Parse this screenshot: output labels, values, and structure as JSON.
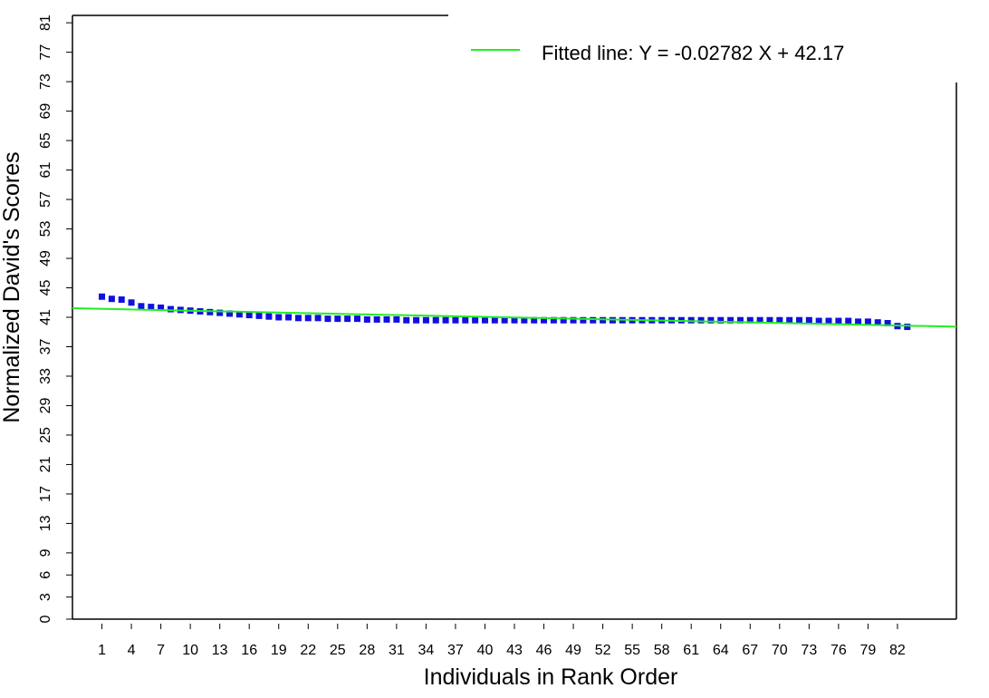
{
  "chart_data": {
    "type": "scatter",
    "xlabel": "Individuals in Rank Order",
    "ylabel": "Normalized David's Scores",
    "xlim": [
      -2,
      88
    ],
    "ylim": [
      0,
      82
    ],
    "x_ticks": [
      1,
      4,
      7,
      10,
      13,
      16,
      19,
      22,
      25,
      28,
      31,
      34,
      37,
      40,
      43,
      46,
      49,
      52,
      55,
      58,
      61,
      64,
      67,
      70,
      73,
      76,
      79,
      82
    ],
    "y_ticks": [
      0,
      3,
      6,
      9,
      13,
      17,
      21,
      25,
      29,
      33,
      37,
      41,
      45,
      49,
      53,
      57,
      61,
      65,
      69,
      73,
      77,
      81
    ],
    "grid": false,
    "legend": {
      "position": "top-right",
      "entries": [
        {
          "label": "Fitted line:  Y =  -0.02782 X + 42.17",
          "color": "#22ee22"
        }
      ]
    },
    "points": {
      "color": "#1010e0",
      "x": [
        1,
        2,
        3,
        4,
        5,
        6,
        7,
        8,
        9,
        10,
        11,
        12,
        13,
        14,
        15,
        16,
        17,
        18,
        19,
        20,
        21,
        22,
        23,
        24,
        25,
        26,
        27,
        28,
        29,
        30,
        31,
        32,
        33,
        34,
        35,
        36,
        37,
        38,
        39,
        40,
        41,
        42,
        43,
        44,
        45,
        46,
        47,
        48,
        49,
        50,
        51,
        52,
        53,
        54,
        55,
        56,
        57,
        58,
        59,
        60,
        61,
        62,
        63,
        64,
        65,
        66,
        67,
        68,
        69,
        70,
        71,
        72,
        73,
        74,
        75,
        76,
        77,
        78,
        79,
        80,
        81,
        82,
        83
      ],
      "y": [
        43.8,
        43.5,
        43.4,
        43.0,
        42.5,
        42.4,
        42.3,
        42.1,
        42.0,
        41.9,
        41.8,
        41.7,
        41.6,
        41.5,
        41.4,
        41.3,
        41.2,
        41.1,
        41.0,
        41.0,
        40.9,
        40.9,
        40.9,
        40.8,
        40.8,
        40.8,
        40.8,
        40.7,
        40.7,
        40.7,
        40.7,
        40.6,
        40.6,
        40.6,
        40.6,
        40.6,
        40.6,
        40.6,
        40.6,
        40.6,
        40.6,
        40.6,
        40.6,
        40.6,
        40.6,
        40.6,
        40.6,
        40.6,
        40.6,
        40.6,
        40.6,
        40.6,
        40.6,
        40.6,
        40.6,
        40.6,
        40.6,
        40.6,
        40.6,
        40.6,
        40.6,
        40.6,
        40.6,
        40.6,
        40.6,
        40.6,
        40.6,
        40.6,
        40.6,
        40.6,
        40.6,
        40.6,
        40.6,
        40.5,
        40.5,
        40.5,
        40.5,
        40.4,
        40.4,
        40.3,
        40.2,
        39.8,
        39.7
      ]
    },
    "fit": {
      "slope": -0.02782,
      "intercept": 42.17,
      "color": "#22ee22"
    }
  }
}
